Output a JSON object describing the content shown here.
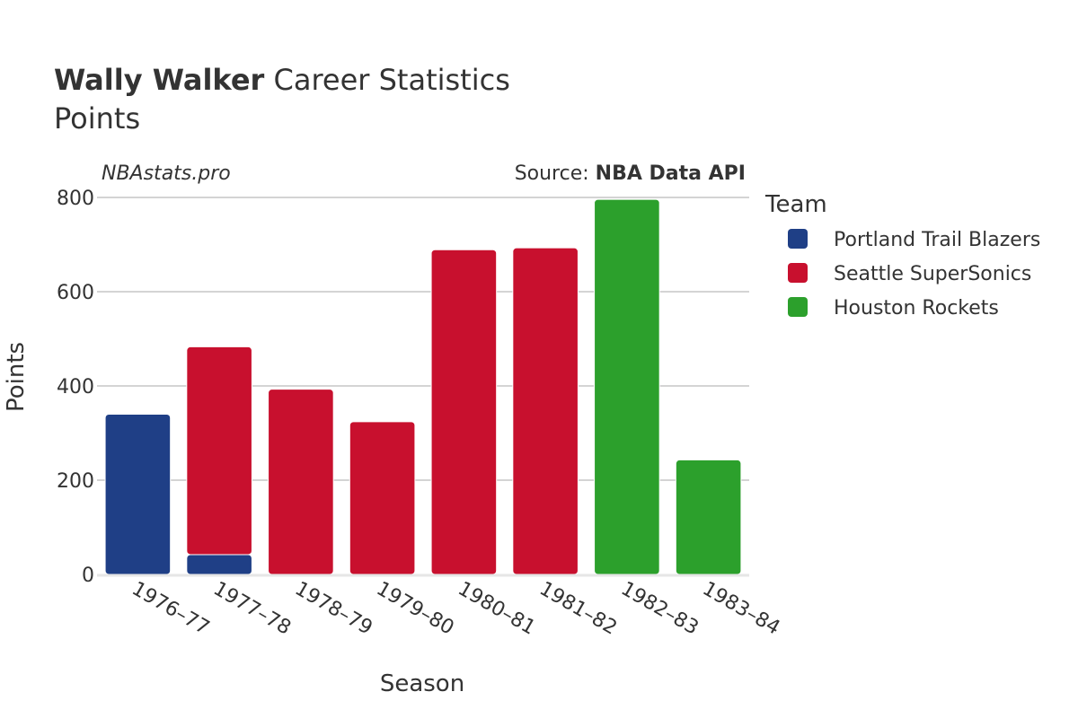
{
  "chart_data": {
    "type": "bar",
    "stacked": true,
    "title_bold": "Wally Walker",
    "title_rest": " Career Statistics",
    "subtitle": "Points",
    "watermark": "NBAstats.pro",
    "source_prefix": "Source: ",
    "source_name": "NBA Data API",
    "xlabel": "Season",
    "ylabel": "Points",
    "ylim": [
      0,
      800
    ],
    "yticks": [
      0,
      200,
      400,
      600,
      800
    ],
    "legend_title": "Team",
    "legend_position": "right",
    "categories": [
      "1976–77",
      "1977–78",
      "1978–79",
      "1979–80",
      "1980–81",
      "1981–82",
      "1982–83",
      "1983–84"
    ],
    "series": [
      {
        "name": "Portland Trail Blazers",
        "color": "#1f3f86",
        "values": [
          340,
          42,
          0,
          0,
          0,
          0,
          0,
          0
        ]
      },
      {
        "name": "Seattle SuperSonics",
        "color": "#c8102e",
        "values": [
          0,
          441,
          393,
          324,
          689,
          693,
          0,
          0
        ]
      },
      {
        "name": "Houston Rockets",
        "color": "#2ca02c",
        "values": [
          0,
          0,
          0,
          0,
          0,
          0,
          796,
          243
        ]
      }
    ]
  }
}
